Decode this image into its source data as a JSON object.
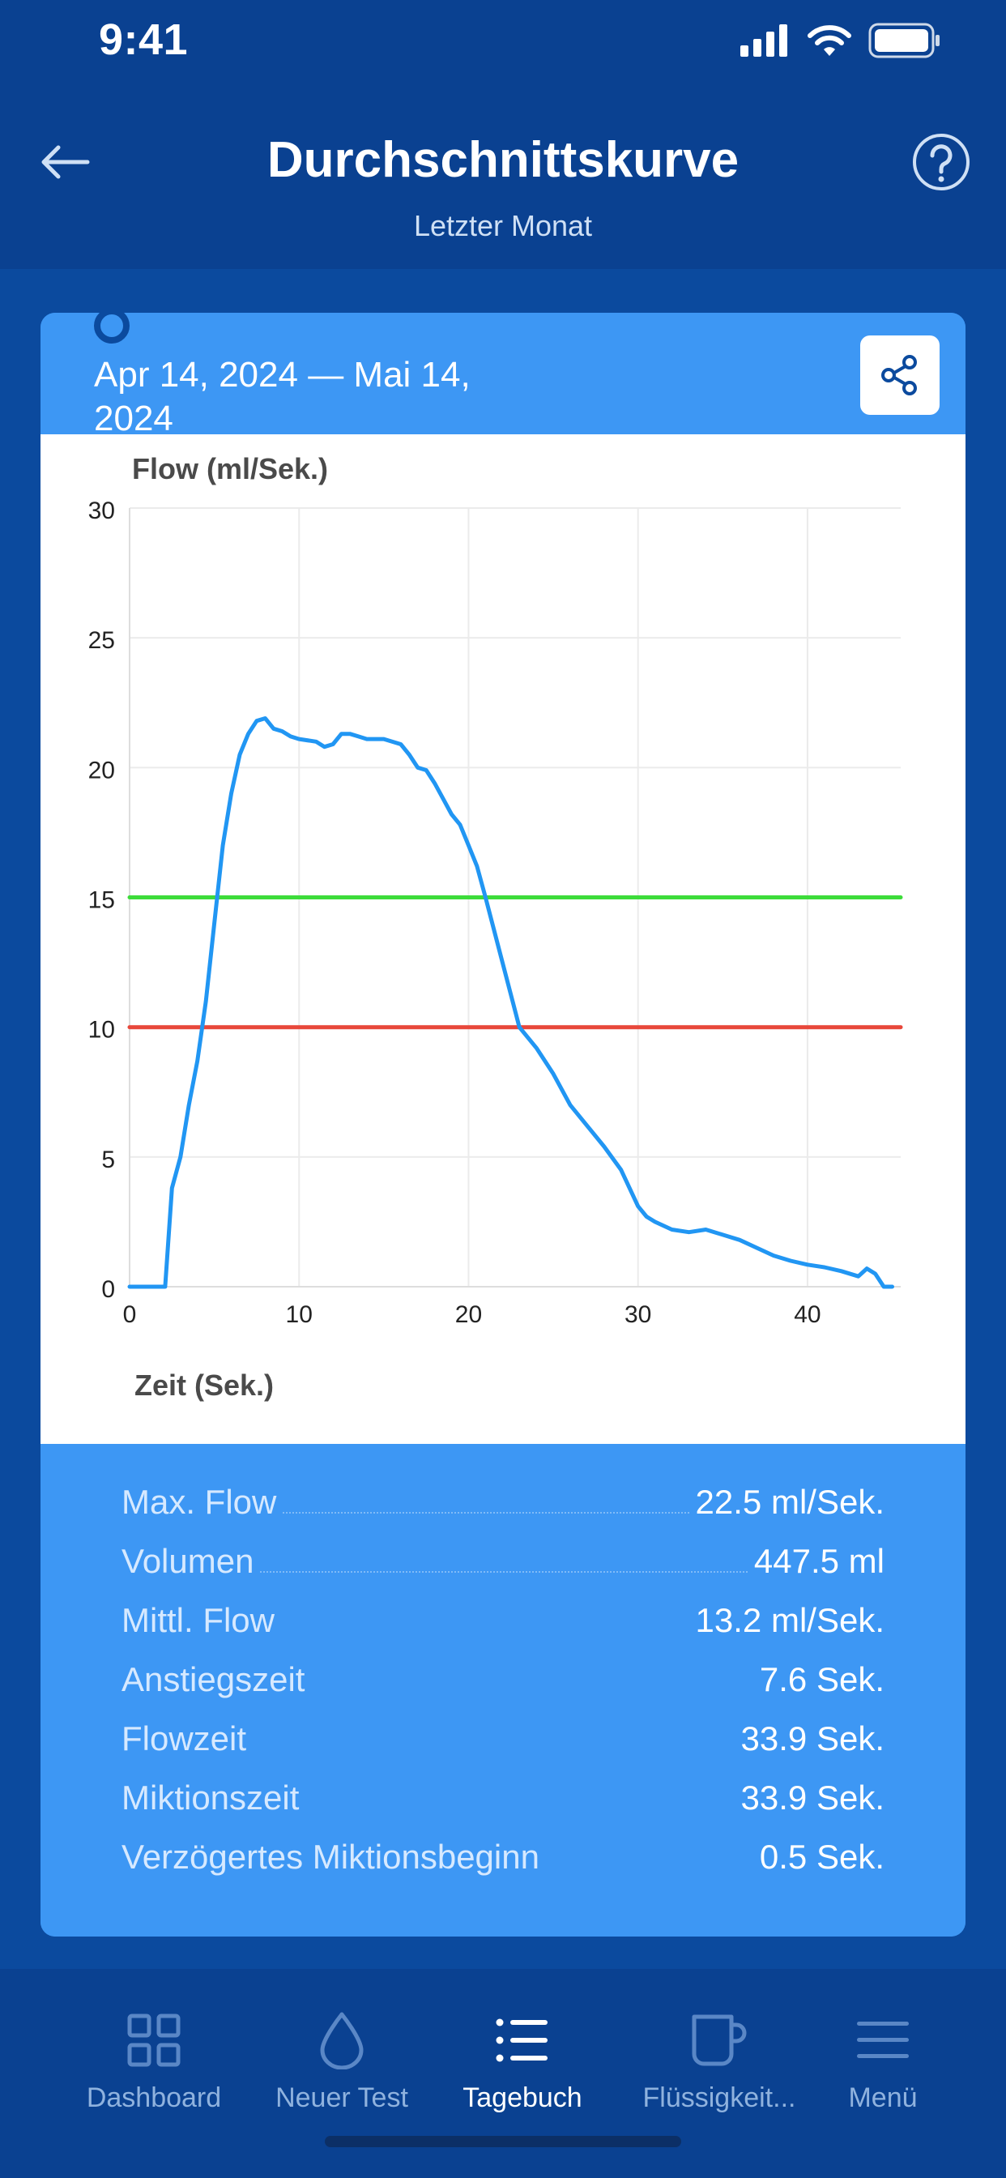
{
  "status": {
    "time": "9:41"
  },
  "header": {
    "title": "Durchschnittskurve",
    "subtitle": "Letzter Monat"
  },
  "card": {
    "date_range": "Apr 14, 2024 — Mai 14, 2024"
  },
  "chart_data": {
    "type": "line",
    "ylabel": "Flow (ml/Sek.)",
    "xlabel": "Zeit (Sek.)",
    "xlim": [
      0,
      45.5
    ],
    "ylim": [
      0,
      30
    ],
    "xticks": [
      0,
      10,
      20,
      30,
      40
    ],
    "yticks": [
      0,
      5,
      10,
      15,
      20,
      25,
      30
    ],
    "grid": true,
    "series": [
      {
        "color": "#2196f3",
        "x": [
          0,
          2.1,
          2.5,
          3,
          3.5,
          4,
          4.5,
          5,
          5.5,
          6,
          6.5,
          7,
          7.5,
          8,
          8.5,
          9,
          9.5,
          10,
          11,
          11.5,
          12,
          12.5,
          13,
          13.5,
          14,
          15,
          16,
          16.5,
          17,
          17.5,
          18,
          18.5,
          19,
          19.5,
          20,
          20.5,
          21,
          22,
          23,
          24,
          25,
          26,
          27,
          28,
          29,
          30,
          30.5,
          31,
          32,
          33,
          34,
          35,
          36,
          37,
          38,
          39,
          40,
          41,
          42,
          43,
          43.5,
          44,
          44.5,
          45
        ],
        "y": [
          0,
          0,
          3.8,
          5,
          7,
          8.7,
          11,
          14,
          17,
          19,
          20.5,
          21.3,
          21.8,
          21.9,
          21.5,
          21.4,
          21.2,
          21.1,
          21.0,
          20.8,
          20.9,
          21.3,
          21.3,
          21.2,
          21.1,
          21.1,
          20.9,
          20.5,
          20.0,
          19.9,
          19.4,
          18.8,
          18.2,
          17.8,
          17.0,
          16.2,
          15.0,
          12.5,
          10.0,
          9.2,
          8.2,
          7.0,
          6.2,
          5.4,
          4.5,
          3.1,
          2.7,
          2.5,
          2.2,
          2.1,
          2.2,
          2.0,
          1.8,
          1.5,
          1.2,
          1.0,
          0.85,
          0.75,
          0.6,
          0.4,
          0.7,
          0.5,
          0.0,
          0.0
        ]
      },
      {
        "color": "#3ddc3a",
        "x": [
          0,
          45.5
        ],
        "y": [
          15,
          15
        ]
      },
      {
        "color": "#e8473a",
        "x": [
          0,
          45.5
        ],
        "y": [
          10,
          10
        ]
      }
    ]
  },
  "stats": [
    {
      "label": "Max. Flow",
      "value": "22.5 ml/Sek."
    },
    {
      "label": "Volumen",
      "value": "447.5 ml"
    },
    {
      "label": "Mittl. Flow",
      "value": "13.2 ml/Sek."
    },
    {
      "label": "Anstiegszeit",
      "value": "7.6 Sek."
    },
    {
      "label": "Flowzeit",
      "value": "33.9 Sek."
    },
    {
      "label": "Miktionszeit",
      "value": "33.9 Sek."
    },
    {
      "label": "Verzögertes Miktionsbeginn",
      "value": "0.5 Sek."
    }
  ],
  "tabs": [
    {
      "label": "Dashboard",
      "icon": "grid-icon",
      "active": false
    },
    {
      "label": "Neuer Test",
      "icon": "drop-icon",
      "active": false
    },
    {
      "label": "Tagebuch",
      "icon": "list-icon",
      "active": true
    },
    {
      "label": "Flüssigkeit...",
      "icon": "cup-icon",
      "active": false
    },
    {
      "label": "Menü",
      "icon": "menu-icon",
      "active": false
    }
  ]
}
